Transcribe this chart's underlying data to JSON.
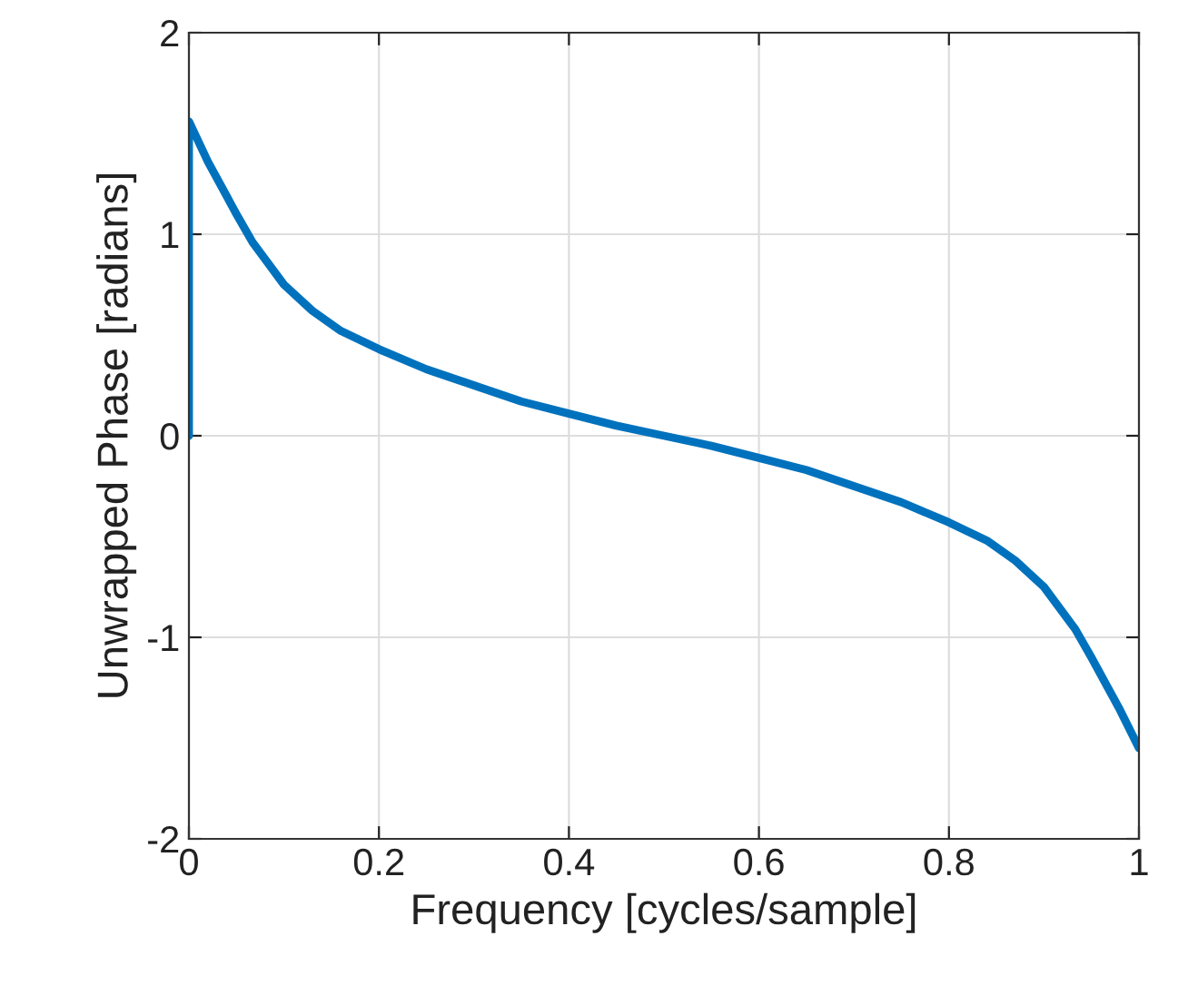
{
  "chart_data": {
    "type": "line",
    "xlabel": "Frequency [cycles/sample]",
    "ylabel": "Unwrapped Phase [radians]",
    "series": [
      {
        "color": "#0072bd",
        "x": [
          0,
          0,
          0.02,
          0.035,
          0.05,
          0.067,
          0.1,
          0.13,
          0.16,
          0.2,
          0.25,
          0.3,
          0.35,
          0.4,
          0.45,
          0.5,
          0.55,
          0.6,
          0.65,
          0.7,
          0.75,
          0.8,
          0.84,
          0.87,
          0.9,
          0.933,
          0.95,
          0.965,
          0.98,
          1
        ],
        "values": [
          0,
          1.56,
          1.36,
          1.23,
          1.1,
          0.96,
          0.75,
          0.62,
          0.52,
          0.43,
          0.33,
          0.25,
          0.17,
          0.11,
          0.05,
          0,
          -0.05,
          -0.11,
          -0.17,
          -0.25,
          -0.33,
          -0.43,
          -0.52,
          -0.62,
          -0.75,
          -0.96,
          -1.1,
          -1.23,
          -1.36,
          -1.55
        ]
      }
    ],
    "xlim": [
      0,
      1
    ],
    "ylim": [
      -2,
      2
    ],
    "xticks": [
      0,
      0.2,
      0.4,
      0.6,
      0.8,
      1
    ],
    "yticks": [
      -2,
      -1,
      0,
      1,
      2
    ],
    "grid": true,
    "line_style": "solid",
    "marker": "none"
  }
}
